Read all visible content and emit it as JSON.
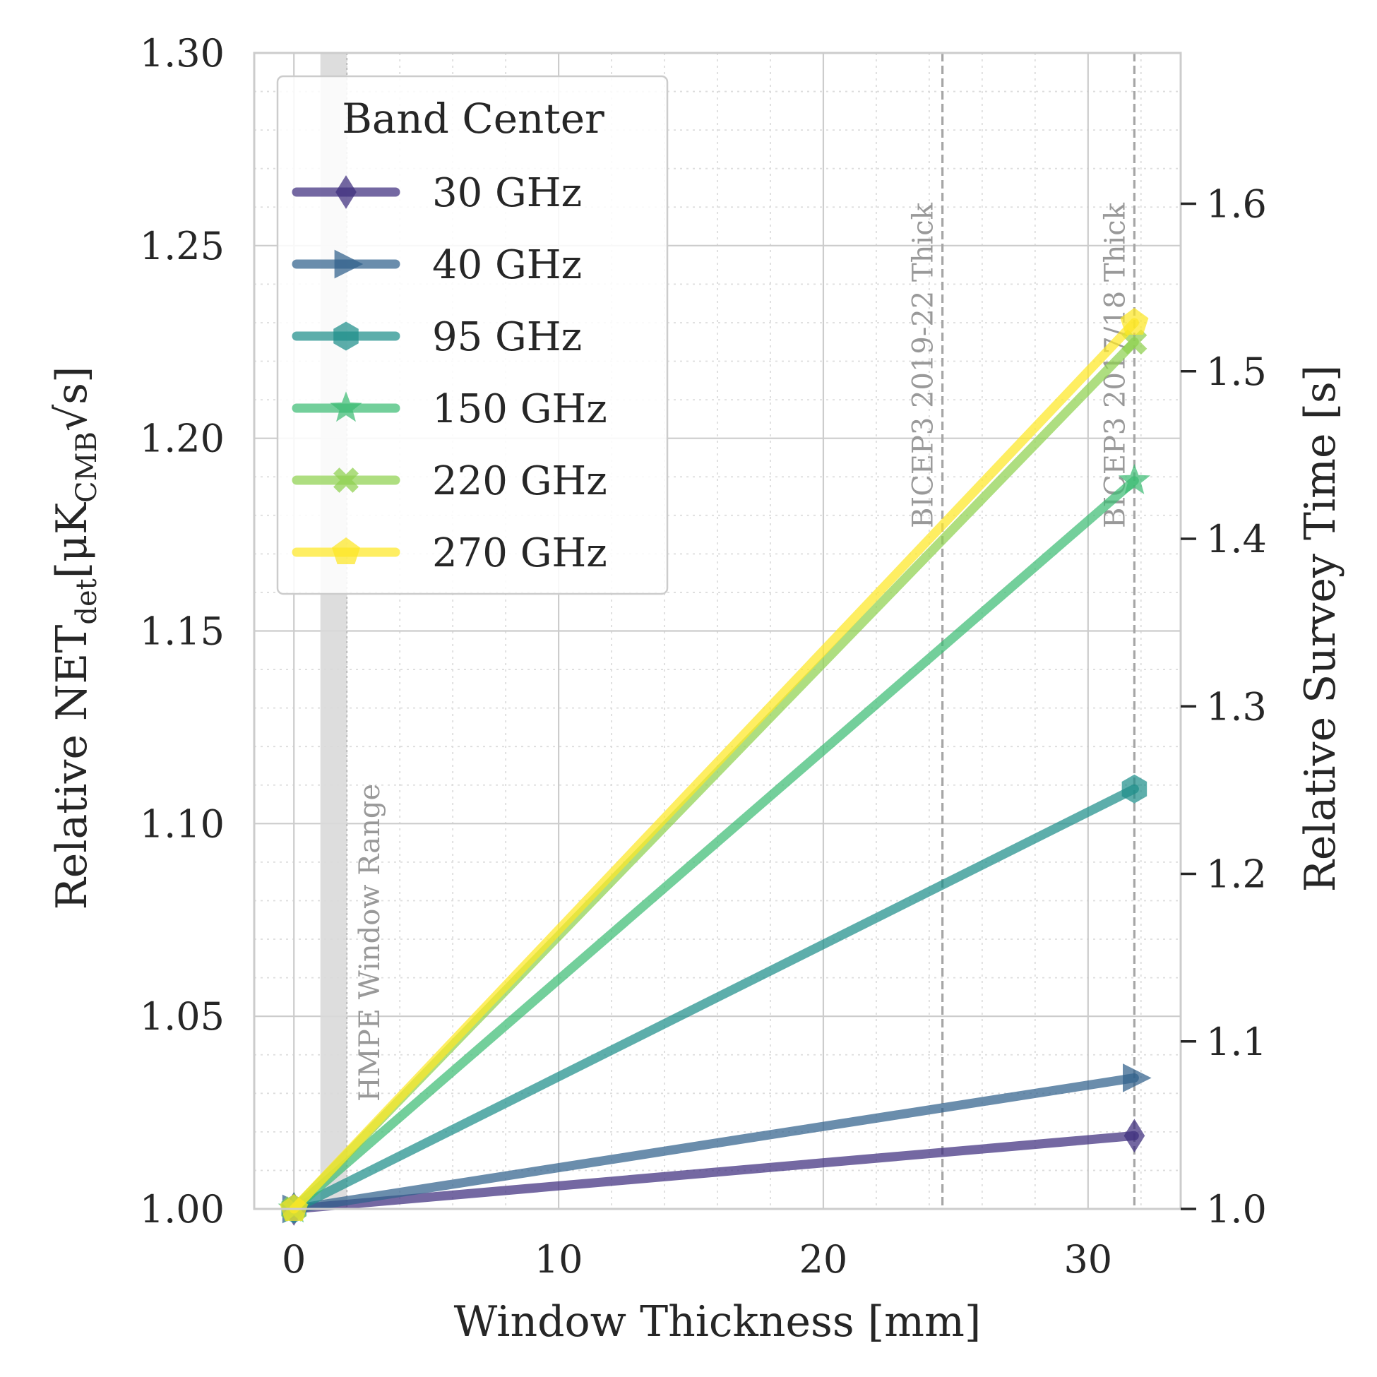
{
  "chart_data": {
    "type": "line",
    "xlabel": "Window Thickness [mm]",
    "ylabel": "Relative NET",
    "ylabel_sub": "det",
    "ylabel_units_open": "[μK",
    "ylabel_units_sub": "CMB",
    "ylabel_units_sqrt": "√s]",
    "y2label": "Relative Survey Time [s]",
    "xlim": [
      -1.5,
      33.5
    ],
    "ylim": [
      1.0,
      1.3
    ],
    "y2lim": [
      1.0,
      1.69
    ],
    "x_ticks": [
      0,
      10,
      20,
      30
    ],
    "x_tick_labels": [
      "0",
      "10",
      "20",
      "30"
    ],
    "y_ticks": [
      1.0,
      1.05,
      1.1,
      1.15,
      1.2,
      1.25,
      1.3
    ],
    "y_tick_labels": [
      "1.00",
      "1.05",
      "1.10",
      "1.15",
      "1.20",
      "1.25",
      "1.30"
    ],
    "y2_ticks": [
      1.0,
      1.1,
      1.2,
      1.3,
      1.4,
      1.5,
      1.6
    ],
    "y2_tick_labels": [
      "1.0",
      "1.1",
      "1.2",
      "1.3",
      "1.4",
      "1.5",
      "1.6"
    ],
    "grid": true,
    "legend": {
      "title": "Band Center",
      "location": "upper-left"
    },
    "series": [
      {
        "name": "30 GHz",
        "color": "#3e2e7e",
        "marker": "diamond",
        "x": [
          0,
          31.75
        ],
        "y": [
          1.0,
          1.019
        ]
      },
      {
        "name": "40 GHz",
        "color": "#31618c",
        "marker": "triangle-right",
        "x": [
          0,
          31.75
        ],
        "y": [
          1.0,
          1.034
        ]
      },
      {
        "name": "95 GHz",
        "color": "#1f8f8b",
        "marker": "hexagon",
        "x": [
          0,
          31.75
        ],
        "y": [
          1.0,
          1.109
        ]
      },
      {
        "name": "150 GHz",
        "color": "#3dbc74",
        "marker": "star",
        "x": [
          0,
          31.75
        ],
        "y": [
          1.0,
          1.189
        ]
      },
      {
        "name": "220 GHz",
        "color": "#8fd14f",
        "marker": "x-filled",
        "x": [
          0,
          31.75
        ],
        "y": [
          1.0,
          1.225
        ]
      },
      {
        "name": "270 GHz",
        "color": "#fde725",
        "marker": "pentagon",
        "x": [
          0,
          31.75
        ],
        "y": [
          1.0,
          1.23
        ]
      }
    ],
    "annotations": [
      {
        "type": "span",
        "x0": 1.0,
        "x1": 2.0,
        "label": "HMPE Window Range"
      },
      {
        "type": "vline",
        "x": 24.5,
        "label": "BICEP3 2019-22 Thick"
      },
      {
        "type": "vline",
        "x": 31.75,
        "label": "BICEP3 2017/18 Thick"
      }
    ]
  }
}
